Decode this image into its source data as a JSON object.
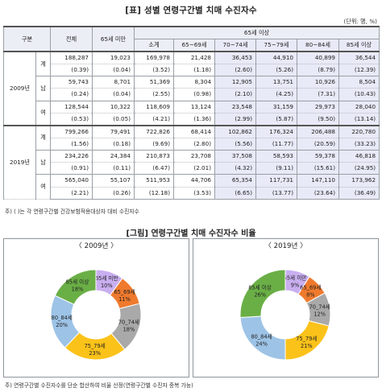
{
  "table": {
    "title": "[표] 성별 연령구간별 치매 수진자수",
    "unit_note": "(단위: 명, %)",
    "headers": {
      "category": "구분",
      "total": "전체",
      "under65": "65세 미만",
      "over65": "65세 이상",
      "subtotal": "소계",
      "age_65_69": "65~69세",
      "age_70_74": "70~74세",
      "age_75_79": "75~79세",
      "age_80_84": "80~84세",
      "age_85plus": "85세 이상"
    },
    "groups": [
      {
        "year": "2009년",
        "rows": [
          {
            "sex": "계",
            "values": [
              "188,287",
              "19,023",
              "169,978",
              "21,428",
              "36,453",
              "44,910",
              "40,899",
              "36,544"
            ],
            "pct": [
              "(0.39)",
              "(0.04)",
              "(3.52)",
              "(1.18)",
              "(2.60)",
              "(5.26)",
              "(8.79)",
              "(12.39)"
            ]
          },
          {
            "sex": "남",
            "values": [
              "59,743",
              "8,701",
              "51,369",
              "8,304",
              "12,905",
              "13,751",
              "10,926",
              "8,504"
            ],
            "pct": [
              "(0.24)",
              "(0.04)",
              "(2.55)",
              "(0.98)",
              "(2.10)",
              "(4.25)",
              "(7.31)",
              "(10.43)"
            ]
          },
          {
            "sex": "여",
            "values": [
              "128,544",
              "10,322",
              "118,609",
              "13,124",
              "23,548",
              "31,159",
              "29,973",
              "28,040"
            ],
            "pct": [
              "(0.53)",
              "(0.05)",
              "(4.21)",
              "(1.36)",
              "(2.99)",
              "(5.87)",
              "(9.50)",
              "(13.14)"
            ]
          }
        ]
      },
      {
        "year": "2019년",
        "rows": [
          {
            "sex": "계",
            "values": [
              "799,266",
              "79,491",
              "722,826",
              "68,414",
              "102,862",
              "176,324",
              "206,488",
              "220,780"
            ],
            "pct": [
              "(1.56)",
              "(0.18)",
              "(9.69)",
              "(2.80)",
              "(5.56)",
              "(11.77)",
              "(20.59)",
              "(33.23)"
            ]
          },
          {
            "sex": "남",
            "values": [
              "234,226",
              "24,384",
              "210,873",
              "23,708",
              "37,508",
              "58,593",
              "59,378",
              "46,818"
            ],
            "pct": [
              "(0.91)",
              "(0.11)",
              "(6.47)",
              "(2.01)",
              "(4.32)",
              "(9.11)",
              "(15.61)",
              "(24.95)"
            ]
          },
          {
            "sex": "여",
            "values": [
              "565,040",
              "55,107",
              "511,953",
              "44,706",
              "65,354",
              "117,731",
              "147,110",
              "173,962"
            ],
            "pct": [
              "(2.21)",
              "(0.26)",
              "(12.18)",
              "(3.53)",
              "(6.65)",
              "(13.77)",
              "(23.64)",
              "(36.49)"
            ]
          }
        ]
      }
    ],
    "footnote": "주) ( )는 각 연령구간별 건강보험적용대상자 대비 수진자수"
  },
  "figure": {
    "title": "[그림] 연령구간별 치매 수진자수 비율",
    "footnote": "주) 연령구간별 수진자수를 단순 합산하여 비율 산정(연령구간별 수진자 중복 가능)"
  },
  "chart_data": [
    {
      "type": "pie",
      "title": "〈 2009년 〉",
      "categories": [
        "65세 미만",
        "65_69세",
        "70_74세",
        "75_79세",
        "80_84세",
        "85세 이상"
      ],
      "values": [
        10,
        11,
        18,
        23,
        20,
        18
      ],
      "colors": [
        "#c9aef0",
        "#ef7a2e",
        "#a9a9a9",
        "#fbc21a",
        "#9dc3e6",
        "#6aaf46"
      ]
    },
    {
      "type": "pie",
      "title": "〈 2019년 〉",
      "categories": [
        "65세 미만",
        "65_69세",
        "70_74세",
        "75_79세",
        "80_84세",
        "85세 이상"
      ],
      "values": [
        9,
        8,
        12,
        21,
        24,
        26
      ],
      "colors": [
        "#c9aef0",
        "#ef7a2e",
        "#a9a9a9",
        "#fbc21a",
        "#9dc3e6",
        "#6aaf46"
      ]
    }
  ]
}
